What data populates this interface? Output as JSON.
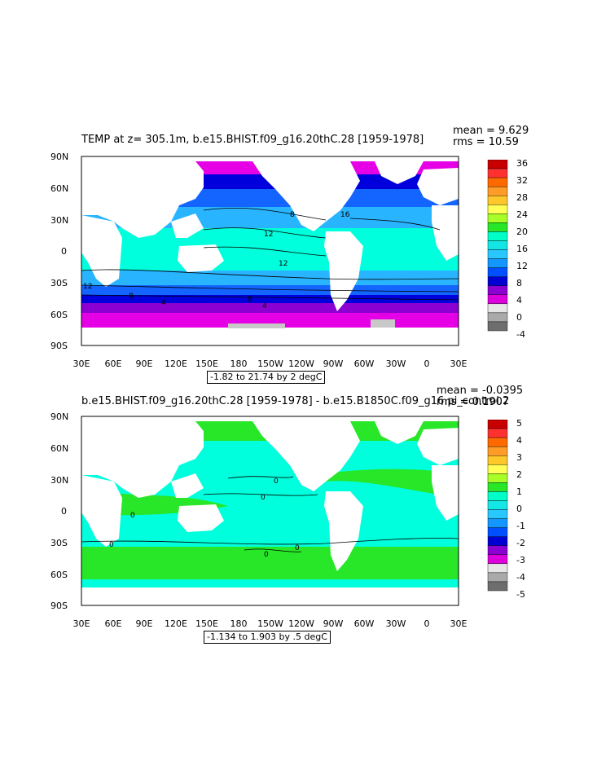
{
  "panels": [
    {
      "title": "TEMP at z= 305.1m, b.e15.BHIST.f09_g16.20thC.28 [1959-1978]",
      "mean_text": "mean = 9.629",
      "rms_text": "rms = 10.59",
      "range_text": "-1.82 to 21.74 by 2 degC",
      "colorbar_labels": [
        "36",
        "32",
        "28",
        "24",
        "20",
        "16",
        "12",
        "8",
        "4",
        "0",
        "-4"
      ],
      "colorbar_colors": [
        "#c80000",
        "#ff3030",
        "#ff6a00",
        "#ff9c28",
        "#ffc82a",
        "#ffff55",
        "#a8ff28",
        "#28e628",
        "#00ffc8",
        "#14e6e6",
        "#28c8ff",
        "#1496ff",
        "#0050ff",
        "#0000d2",
        "#8c00d2",
        "#dc00dc",
        "#e6e6e6",
        "#aaaaaa",
        "#6e6e6e"
      ],
      "contour_labels": [
        "16",
        "8",
        "12",
        "12",
        "12",
        "8",
        "4",
        "8",
        "4"
      ]
    },
    {
      "title": "b.e15.BHIST.f09_g16.20thC.28 [1959-1978] - b.e15.B1850C.f09_g16.pi_control.2",
      "mean_text": "mean = -0.0395",
      "rms_text": "rms = 0.1907",
      "range_text": "-1.134 to 1.903 by .5 degC",
      "colorbar_labels": [
        "5",
        "4",
        "3",
        "2",
        "1",
        "0",
        "-1",
        "-2",
        "-3",
        "-4",
        "-5"
      ],
      "colorbar_colors": [
        "#c80000",
        "#ff3030",
        "#ff6a00",
        "#ff9c28",
        "#ffc82a",
        "#ffff55",
        "#a8ff28",
        "#28e628",
        "#00ffc8",
        "#14e6e6",
        "#28c8ff",
        "#1496ff",
        "#0050ff",
        "#0000d2",
        "#8c00d2",
        "#dc00dc",
        "#e6e6e6",
        "#aaaaaa",
        "#6e6e6e"
      ],
      "contour_labels": [
        "0",
        "0",
        "0",
        "0",
        "0",
        "0"
      ]
    }
  ],
  "axes": {
    "lat_labels": [
      "90N",
      "60N",
      "30N",
      "0",
      "30S",
      "60S",
      "90S"
    ],
    "lon_labels": [
      "30E",
      "60E",
      "90E",
      "120E",
      "150E",
      "180",
      "150W",
      "120W",
      "90W",
      "60W",
      "30W",
      "0",
      "30E"
    ]
  },
  "colors": {
    "polar": "#e600e6",
    "subpolar": "#8c00d2",
    "deep_blue": "#0000dc",
    "blue": "#1464ff",
    "light_blue": "#28b4ff",
    "cyan": "#00ffdc",
    "cyan2": "#14e6e6",
    "green": "#28e628",
    "gray": "#c8c8c8"
  }
}
